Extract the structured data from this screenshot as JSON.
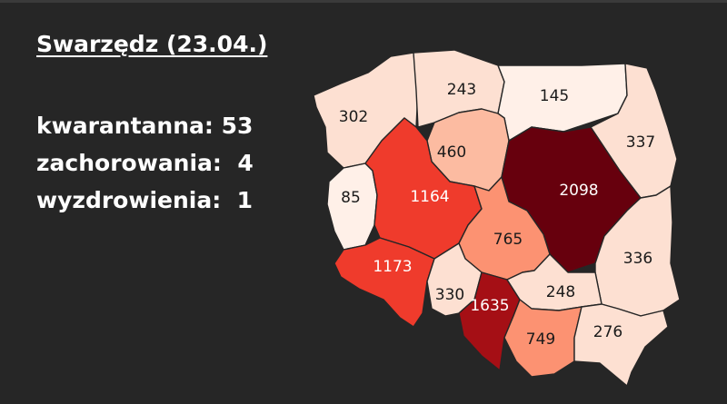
{
  "title": "Swarzędz (23.04.)",
  "stats": [
    {
      "label": "kwarantanna:",
      "value": "53",
      "sep": " "
    },
    {
      "label": "zachorowania:",
      "value": "4",
      "sep": "  "
    },
    {
      "label": "wyzdrowienia:",
      "value": "1",
      "sep": "  "
    }
  ],
  "colors": {
    "background": "#262626",
    "scale": [
      "#fff0e8",
      "#fde0d2",
      "#fcbba1",
      "#fc9272",
      "#ef3b2c",
      "#a50f15",
      "#67000d"
    ]
  },
  "regions": [
    {
      "id": "zachodniopomorskie",
      "value": "302",
      "color": "#fde0d2"
    },
    {
      "id": "pomorskie",
      "value": "243",
      "color": "#fde0d2"
    },
    {
      "id": "warminsko-mazurskie",
      "value": "145",
      "color": "#fff0e8"
    },
    {
      "id": "podlaskie",
      "value": "337",
      "color": "#fde0d2"
    },
    {
      "id": "kujawsko-pomorskie",
      "value": "460",
      "color": "#fcbba1"
    },
    {
      "id": "lubuskie",
      "value": "85",
      "color": "#fff0e8"
    },
    {
      "id": "wielkopolskie",
      "value": "1164",
      "color": "#ef3b2c"
    },
    {
      "id": "mazowieckie",
      "value": "2098",
      "color": "#67000d"
    },
    {
      "id": "lodzkie",
      "value": "765",
      "color": "#fc9272"
    },
    {
      "id": "lubelskie",
      "value": "336",
      "color": "#fde0d2"
    },
    {
      "id": "dolnoslaskie",
      "value": "1173",
      "color": "#ef3b2c"
    },
    {
      "id": "opolskie",
      "value": "330",
      "color": "#fde0d2"
    },
    {
      "id": "slaskie",
      "value": "1635",
      "color": "#a50f15"
    },
    {
      "id": "swietokrzyskie",
      "value": "248",
      "color": "#fde0d2"
    },
    {
      "id": "malopolskie",
      "value": "749",
      "color": "#fc9272"
    },
    {
      "id": "podkarpackie",
      "value": "276",
      "color": "#fde0d2"
    }
  ]
}
